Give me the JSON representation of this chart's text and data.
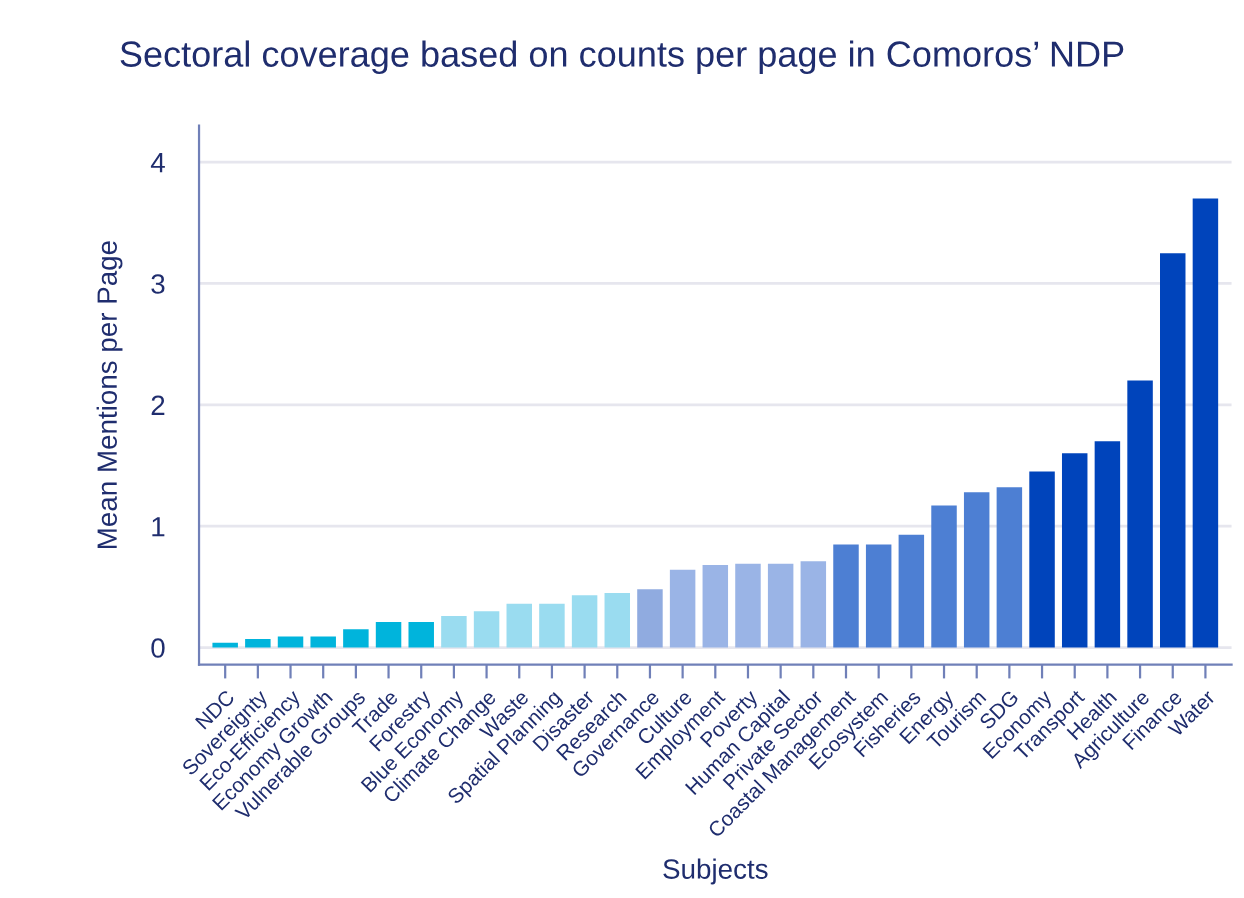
{
  "chart_data": {
    "type": "bar",
    "title": "Sectoral coverage based on counts per page in Comoros’ NDP",
    "xlabel": "Subjects",
    "ylabel": "Mean Mentions per Page",
    "categories": [
      "NDC",
      "Sovereignty",
      "Eco-Efficiency",
      "Economy Growth",
      "Vulnerable Groups",
      "Trade",
      "Forestry",
      "Blue Economy",
      "Climate Change",
      "Waste",
      "Spatial Planning",
      "Disaster",
      "Research",
      "Governance",
      "Culture",
      "Employment",
      "Poverty",
      "Human Capital",
      "Private Sector",
      "Coastal Management",
      "Ecosystem",
      "Fisheries",
      "Energy",
      "Tourism",
      "SDG",
      "Economy",
      "Transport",
      "Health",
      "Agriculture",
      "Finance",
      "Water"
    ],
    "values": [
      0.04,
      0.07,
      0.09,
      0.09,
      0.15,
      0.21,
      0.21,
      0.26,
      0.3,
      0.36,
      0.36,
      0.43,
      0.45,
      0.48,
      0.64,
      0.68,
      0.69,
      0.69,
      0.71,
      0.85,
      0.85,
      0.93,
      1.17,
      1.28,
      1.32,
      1.45,
      1.6,
      1.7,
      2.2,
      3.25,
      3.7
    ],
    "colors": [
      "#00b4dc",
      "#00b4dc",
      "#00b4dc",
      "#00b4dc",
      "#00b4dc",
      "#00b4dc",
      "#00b4dc",
      "#9adcf0",
      "#9adcf0",
      "#9adcf0",
      "#9adcf0",
      "#9adcf0",
      "#9adcf0",
      "#90abe0",
      "#9ab4e6",
      "#9ab4e6",
      "#9ab4e6",
      "#9ab4e6",
      "#9ab4e6",
      "#4d7fd3",
      "#4d7fd3",
      "#4d7fd3",
      "#4d7fd3",
      "#4d7fd3",
      "#4d7fd3",
      "#0044bb",
      "#0044bb",
      "#0044bb",
      "#0044bb",
      "#0044bb",
      "#0044bb"
    ],
    "ylim": [
      -0.14,
      4.3
    ],
    "yticks": [
      0,
      1,
      2,
      3,
      4
    ],
    "grid": "y"
  }
}
